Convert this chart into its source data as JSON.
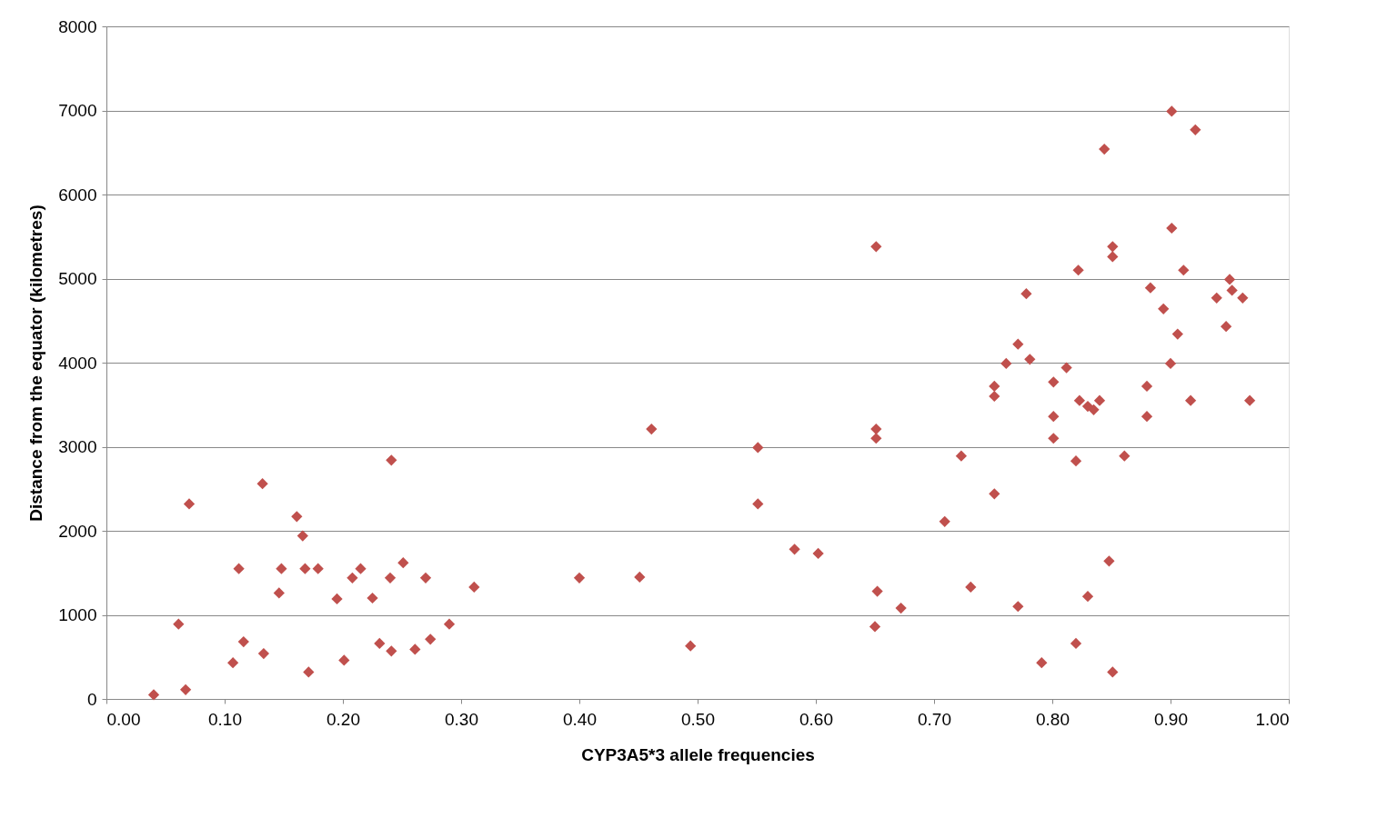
{
  "chart_data": {
    "type": "scatter",
    "xlabel": "CYP3A5*3 allele frequencies",
    "ylabel": "Distance from the equator (kilometres)",
    "xlim": [
      0,
      1
    ],
    "xticks": [
      {
        "value": 0,
        "label": "0.00"
      },
      {
        "value": 0.1,
        "label": "0.10"
      },
      {
        "value": 0.2,
        "label": "0.20"
      },
      {
        "value": 0.3,
        "label": "0.30"
      },
      {
        "value": 0.4,
        "label": "0.40"
      },
      {
        "value": 0.5,
        "label": "0.50"
      },
      {
        "value": 0.6,
        "label": "0.60"
      },
      {
        "value": 0.7,
        "label": "0.70"
      },
      {
        "value": 0.8,
        "label": "0.80"
      },
      {
        "value": 0.9,
        "label": "0.90"
      },
      {
        "value": 1,
        "label": "1.00"
      }
    ],
    "ylim": [
      0,
      8000
    ],
    "yticks": [
      0,
      1000,
      2000,
      3000,
      4000,
      5000,
      6000,
      7000,
      8000
    ],
    "grid": "y",
    "marker": "diamond",
    "series": [
      {
        "color": "#c0504d",
        "x": [
          0.04,
          0.061,
          0.067,
          0.07,
          0.107,
          0.112,
          0.116,
          0.132,
          0.133,
          0.146,
          0.148,
          0.161,
          0.166,
          0.168,
          0.171,
          0.179,
          0.195,
          0.201,
          0.208,
          0.215,
          0.225,
          0.231,
          0.241,
          0.24,
          0.241,
          0.251,
          0.261,
          0.27,
          0.274,
          0.29,
          0.311,
          0.4,
          0.451,
          0.461,
          0.494,
          0.551,
          0.551,
          0.582,
          0.602,
          0.651,
          0.651,
          0.651,
          0.652,
          0.65,
          0.672,
          0.709,
          0.723,
          0.731,
          0.751,
          0.751,
          0.751,
          0.761,
          0.771,
          0.771,
          0.778,
          0.781,
          0.791,
          0.801,
          0.801,
          0.801,
          0.812,
          0.82,
          0.82,
          0.822,
          0.823,
          0.83,
          0.83,
          0.835,
          0.84,
          0.844,
          0.848,
          0.851,
          0.851,
          0.851,
          0.861,
          0.88,
          0.88,
          0.883,
          0.894,
          0.901,
          0.901,
          0.9,
          0.906,
          0.911,
          0.921,
          0.917,
          0.939,
          0.947,
          0.95,
          0.952,
          0.961,
          0.967
        ],
        "values": [
          50,
          890,
          110,
          2320,
          430,
          1550,
          680,
          2560,
          540,
          1260,
          1550,
          2170,
          1940,
          1550,
          320,
          1550,
          1190,
          460,
          1440,
          1550,
          1200,
          660,
          2840,
          1440,
          570,
          1620,
          590,
          1440,
          710,
          890,
          1330,
          1440,
          1450,
          3210,
          630,
          2990,
          2320,
          1780,
          1730,
          5380,
          3210,
          3100,
          1280,
          860,
          1080,
          2110,
          2890,
          1330,
          2440,
          3720,
          3600,
          3990,
          4220,
          1100,
          4820,
          4040,
          430,
          3770,
          3360,
          3100,
          3940,
          2830,
          660,
          5100,
          3550,
          3480,
          1220,
          3440,
          3550,
          6540,
          1640,
          5380,
          5260,
          320,
          2890,
          3360,
          3720,
          4890,
          4640,
          6990,
          5600,
          3990,
          4340,
          5100,
          6770,
          3550,
          4770,
          4430,
          4990,
          4860,
          4770,
          3550
        ]
      }
    ]
  }
}
